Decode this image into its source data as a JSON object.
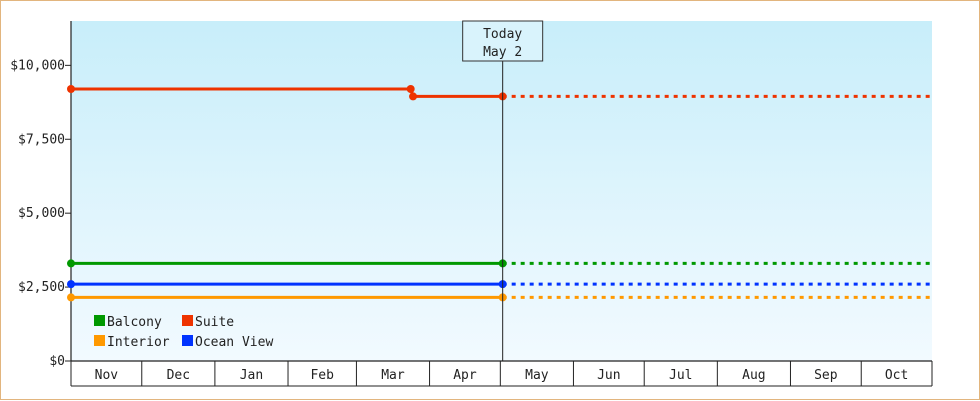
{
  "chart_data": {
    "type": "line",
    "x_domain": [
      "2023-11-01",
      "2024-10-31"
    ],
    "months": [
      "Nov",
      "Dec",
      "Jan",
      "Feb",
      "Mar",
      "Apr",
      "May",
      "Jun",
      "Jul",
      "Aug",
      "Sep",
      "Oct"
    ],
    "month_starts": [
      "2023-11-01",
      "2023-12-01",
      "2024-01-01",
      "2024-02-01",
      "2024-03-01",
      "2024-04-01",
      "2024-05-01",
      "2024-06-01",
      "2024-07-01",
      "2024-08-01",
      "2024-09-01",
      "2024-10-01",
      "2024-10-31"
    ],
    "ylim": [
      0,
      11500
    ],
    "y_ticks": [
      0,
      2500,
      5000,
      7500,
      10000
    ],
    "y_tick_labels": [
      "$0",
      "$2,500",
      "$5,000",
      "$7,500",
      "$10,000"
    ],
    "today": {
      "date": "2024-05-02",
      "label_top": "Today",
      "label_bottom": "May 2"
    },
    "legend_position": "bottom-left",
    "series": [
      {
        "name": "Balcony",
        "color": "#009900",
        "points": [
          [
            "2023-11-01",
            3300
          ],
          [
            "2024-05-02",
            3300
          ]
        ],
        "projection": 3300
      },
      {
        "name": "Suite",
        "color": "#ee3300",
        "points": [
          [
            "2023-11-01",
            9200
          ],
          [
            "2024-03-24",
            9200
          ],
          [
            "2024-03-25",
            8950
          ],
          [
            "2024-05-02",
            8950
          ]
        ],
        "projection": 8950
      },
      {
        "name": "Interior",
        "color": "#ff9900",
        "points": [
          [
            "2023-11-01",
            2150
          ],
          [
            "2024-05-02",
            2150
          ]
        ],
        "projection": 2150
      },
      {
        "name": "Ocean View",
        "color": "#0033ff",
        "points": [
          [
            "2023-11-01",
            2600
          ],
          [
            "2024-05-02",
            2600
          ]
        ],
        "projection": 2600
      }
    ]
  }
}
